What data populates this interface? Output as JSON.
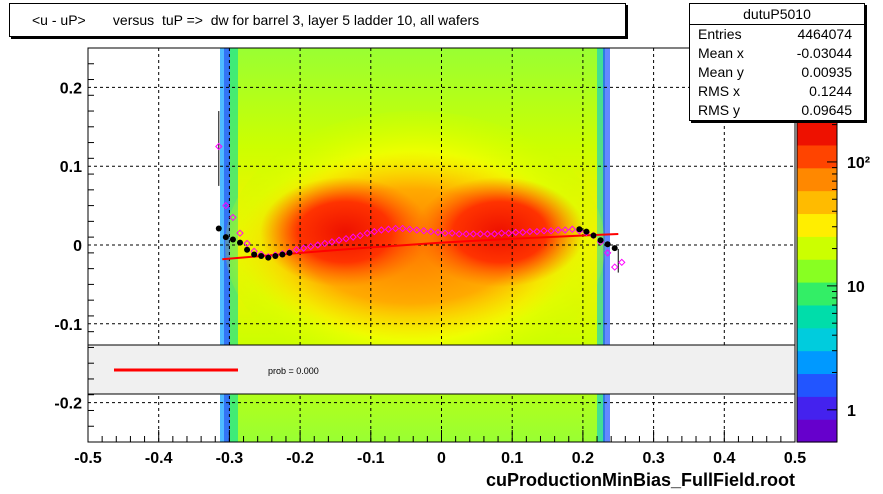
{
  "title": "<u - uP>       versus  tuP =>  dw for barrel 3, layer 5 ladder 10, all wafers",
  "stats": {
    "name": "dutuP5010",
    "rows": [
      {
        "label": "Entries",
        "value": "4464074"
      },
      {
        "label": "Mean x",
        "value": "-0.03044"
      },
      {
        "label": "Mean y",
        "value": "0.00935"
      },
      {
        "label": "RMS x",
        "value": "0.1244"
      },
      {
        "label": "RMS y",
        "value": "0.09645"
      }
    ]
  },
  "fit_legend": {
    "text": "prob = 0.000",
    "line_color": "#ff0000"
  },
  "footer": "cuProductionMinBias_FullField.root",
  "chart_data": {
    "type": "heatmap",
    "title": "<u - uP>       versus  tuP =>  dw for barrel 3, layer 5 ladder 10, all wafers",
    "xlim": [
      -0.5,
      0.5
    ],
    "ylim": [
      -0.25,
      0.25
    ],
    "x_ticks": [
      "-0.5",
      "-0.4",
      "-0.3",
      "-0.2",
      "-0.1",
      "0",
      "0.1",
      "0.2",
      "0.3",
      "0.4",
      "0.5"
    ],
    "x_tick_values": [
      -0.5,
      -0.4,
      -0.3,
      -0.2,
      -0.1,
      0,
      0.1,
      0.2,
      0.3,
      0.4,
      0.5
    ],
    "y_ticks": [
      "-0.2",
      "-0.1",
      "0",
      "0.1",
      "0.2"
    ],
    "y_tick_values": [
      -0.2,
      -0.1,
      0,
      0.1,
      0.2
    ],
    "grid": true,
    "z_scale": "log",
    "z_ticks": [
      "1",
      "10",
      "10²"
    ],
    "z_tick_values": [
      1,
      10,
      100
    ],
    "palette": [
      "#6600cc",
      "#4422ee",
      "#2255ff",
      "#0099ff",
      "#00ccdd",
      "#00ddaa",
      "#33ee66",
      "#88ff22",
      "#ccff00",
      "#ffee00",
      "#ffbb00",
      "#ff8800",
      "#ff4400",
      "#ee1100"
    ],
    "colors": {
      "profile_black": "#000000",
      "profile_magenta": "#ff00ff",
      "fit_line": "#ff0000"
    },
    "profile_black": [
      {
        "x": -0.315,
        "y": 0.021
      },
      {
        "x": -0.305,
        "y": 0.01
      },
      {
        "x": -0.295,
        "y": 0.007
      },
      {
        "x": -0.285,
        "y": 0.003
      },
      {
        "x": -0.275,
        "y": -0.006
      },
      {
        "x": -0.265,
        "y": -0.012
      },
      {
        "x": -0.255,
        "y": -0.014
      },
      {
        "x": -0.245,
        "y": -0.016
      },
      {
        "x": -0.235,
        "y": -0.014
      },
      {
        "x": -0.225,
        "y": -0.012
      },
      {
        "x": -0.215,
        "y": -0.01
      },
      {
        "x": 0.195,
        "y": 0.02
      },
      {
        "x": 0.205,
        "y": 0.017
      },
      {
        "x": 0.215,
        "y": 0.012
      },
      {
        "x": 0.225,
        "y": 0.006
      },
      {
        "x": 0.235,
        "y": 0.001
      },
      {
        "x": 0.245,
        "y": -0.004
      }
    ],
    "profile_magenta": [
      {
        "x": -0.315,
        "y": 0.125
      },
      {
        "x": -0.305,
        "y": 0.05
      },
      {
        "x": -0.295,
        "y": 0.035
      },
      {
        "x": -0.285,
        "y": 0.015
      },
      {
        "x": -0.275,
        "y": 0.002
      },
      {
        "x": -0.265,
        "y": -0.008
      },
      {
        "x": -0.255,
        "y": -0.012
      },
      {
        "x": -0.245,
        "y": -0.015
      },
      {
        "x": -0.235,
        "y": -0.013
      },
      {
        "x": -0.225,
        "y": -0.011
      },
      {
        "x": -0.215,
        "y": -0.009
      },
      {
        "x": -0.205,
        "y": -0.006
      },
      {
        "x": -0.195,
        "y": -0.004
      },
      {
        "x": -0.185,
        "y": -0.002
      },
      {
        "x": -0.175,
        "y": 0.0
      },
      {
        "x": -0.165,
        "y": 0.002
      },
      {
        "x": -0.155,
        "y": 0.004
      },
      {
        "x": -0.145,
        "y": 0.006
      },
      {
        "x": -0.135,
        "y": 0.008
      },
      {
        "x": -0.125,
        "y": 0.01
      },
      {
        "x": -0.115,
        "y": 0.012
      },
      {
        "x": -0.105,
        "y": 0.015
      },
      {
        "x": -0.095,
        "y": 0.017
      },
      {
        "x": -0.085,
        "y": 0.019
      },
      {
        "x": -0.075,
        "y": 0.02
      },
      {
        "x": -0.065,
        "y": 0.021
      },
      {
        "x": -0.055,
        "y": 0.021
      },
      {
        "x": -0.045,
        "y": 0.02
      },
      {
        "x": -0.035,
        "y": 0.019
      },
      {
        "x": -0.025,
        "y": 0.018
      },
      {
        "x": -0.015,
        "y": 0.017
      },
      {
        "x": -0.005,
        "y": 0.016
      },
      {
        "x": 0.005,
        "y": 0.015
      },
      {
        "x": 0.015,
        "y": 0.015
      },
      {
        "x": 0.025,
        "y": 0.014
      },
      {
        "x": 0.035,
        "y": 0.014
      },
      {
        "x": 0.045,
        "y": 0.014
      },
      {
        "x": 0.055,
        "y": 0.014
      },
      {
        "x": 0.065,
        "y": 0.014
      },
      {
        "x": 0.075,
        "y": 0.014
      },
      {
        "x": 0.085,
        "y": 0.015
      },
      {
        "x": 0.095,
        "y": 0.015
      },
      {
        "x": 0.105,
        "y": 0.016
      },
      {
        "x": 0.115,
        "y": 0.016
      },
      {
        "x": 0.125,
        "y": 0.017
      },
      {
        "x": 0.135,
        "y": 0.017
      },
      {
        "x": 0.145,
        "y": 0.018
      },
      {
        "x": 0.155,
        "y": 0.018
      },
      {
        "x": 0.165,
        "y": 0.019
      },
      {
        "x": 0.175,
        "y": 0.019
      },
      {
        "x": 0.185,
        "y": 0.02
      },
      {
        "x": 0.195,
        "y": 0.018
      },
      {
        "x": 0.205,
        "y": 0.016
      },
      {
        "x": 0.215,
        "y": 0.012
      },
      {
        "x": 0.225,
        "y": 0.004
      },
      {
        "x": 0.235,
        "y": -0.01
      },
      {
        "x": 0.245,
        "y": -0.028
      },
      {
        "x": 0.255,
        "y": -0.022
      }
    ],
    "fit_line": [
      {
        "x": -0.31,
        "y": -0.018
      },
      {
        "x": -0.2,
        "y": -0.01
      },
      {
        "x": -0.1,
        "y": -0.003
      },
      {
        "x": 0.0,
        "y": 0.003
      },
      {
        "x": 0.1,
        "y": 0.008
      },
      {
        "x": 0.2,
        "y": 0.012
      },
      {
        "x": 0.25,
        "y": 0.014
      }
    ]
  }
}
